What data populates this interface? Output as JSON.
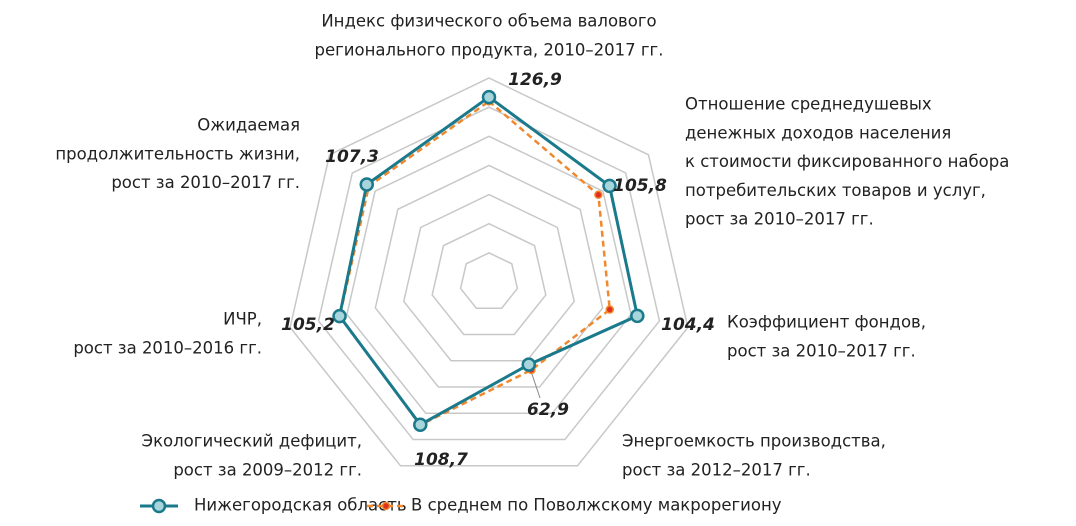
{
  "chart_data": {
    "type": "radar",
    "categories": [
      [
        "Индекс физического объема валового",
        "регионального продукта, 2010–2017 гг."
      ],
      [
        "Отношение среднедушевых",
        "денежных доходов населения",
        "к стоимости фиксированного набора",
        "потребительских товаров и услуг,",
        "рост за 2010–2017 гг."
      ],
      [
        "Коэффициент фондов,",
        "рост за 2010–2017 гг."
      ],
      [
        "Энергоемкость производства,",
        "рост за 2012–2017 гг."
      ],
      [
        "Экологический дефицит,",
        "рост за 2009–2012 гг."
      ],
      [
        "ИЧР,",
        "рост за 2010–2016 гг."
      ],
      [
        "Ожидаемая",
        "продолжительность жизни,",
        "рост за 2010–2017 гг."
      ]
    ],
    "series": [
      {
        "name": "Нижегородская область",
        "color": "#1a7a8c",
        "marker_color": "#a8d4dc",
        "values": [
          126.9,
          105.8,
          104.4,
          62.9,
          108.7,
          105.2,
          107.3
        ],
        "value_labels": [
          "126,9",
          "105,8",
          "104,4",
          "62,9",
          "108,7",
          "105,2",
          "107,3"
        ]
      },
      {
        "name": "В среднем по Поволжскому макрорегиону",
        "color": "#f0892e",
        "marker_color": "#e0301e",
        "values": [
          124,
          96,
          85,
          67,
          109,
          105,
          105.5
        ]
      }
    ],
    "ylim": [
      0,
      140
    ],
    "yticks": [
      20,
      40,
      60,
      80,
      100,
      120,
      140
    ],
    "grid": true,
    "legend": "bottom"
  }
}
